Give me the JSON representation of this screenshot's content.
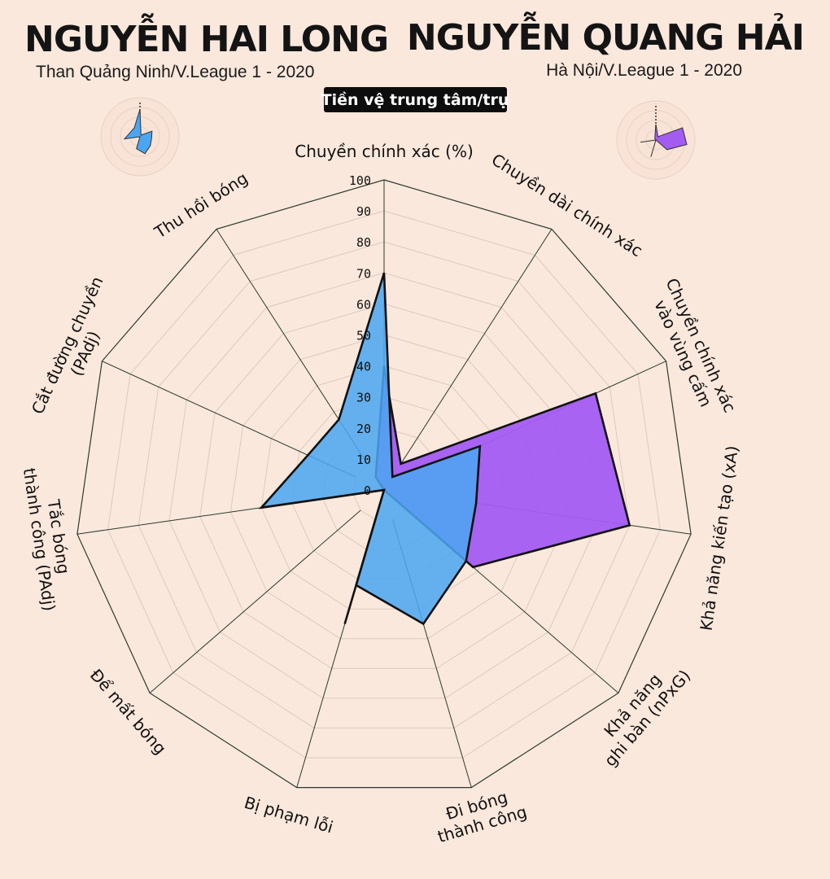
{
  "players": [
    {
      "name": "NGUYỄN HAI LONG",
      "club": "Than Quảng Ninh/V.League 1 - 2020",
      "color": "#4aa6f2"
    },
    {
      "name": "NGUYỄN QUANG HẢI",
      "club": "Hà Nội/V.League 1 - 2020",
      "color": "#a35cf2"
    }
  ],
  "position": "Tiền vệ trung tâm/trụ",
  "chart_data": {
    "type": "radar",
    "axes": [
      [
        "Chuyền chính xác (%)"
      ],
      [
        "Chuyền dài chính xác"
      ],
      [
        "Chuyền chính xác",
        "vào vùng cấm"
      ],
      [
        "Khả năng kiến tạo (xA)"
      ],
      [
        "Khả năng",
        "ghi bàn (nPxG)"
      ],
      [
        "Đi bóng",
        "thành công"
      ],
      [
        "Bị phạm lỗi"
      ],
      [
        "Để mất bóng"
      ],
      [
        "Tắc bóng",
        "thành công (PAdj)"
      ],
      [
        "Cắt đường chuyền",
        "(PAdj)"
      ],
      [
        "Thu hồi bóng"
      ]
    ],
    "ticks": [
      0,
      10,
      20,
      30,
      40,
      50,
      60,
      70,
      80,
      90,
      100
    ],
    "range": [
      0,
      100
    ],
    "series": [
      {
        "name": "NGUYỄN QUANG HẢI",
        "color": "#a35cf2",
        "values": [
          40,
          10,
          75,
          80,
          38,
          0,
          45,
          0,
          40,
          0,
          5
        ]
      },
      {
        "name": "NGUYỄN HAI LONG",
        "color": "#4aa6f2",
        "values": [
          70,
          5,
          34,
          30,
          35,
          45,
          32,
          0,
          40,
          27,
          27
        ]
      }
    ]
  }
}
